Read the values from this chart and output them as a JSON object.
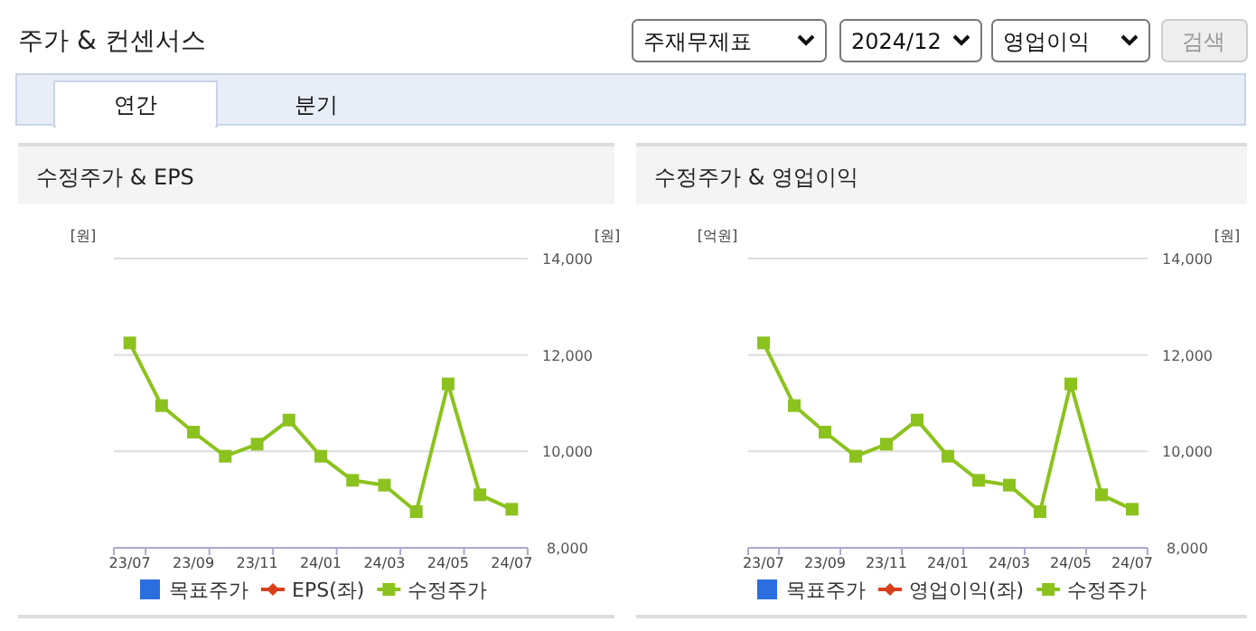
{
  "chart_data": [
    {
      "type": "other",
      "title": "주가 & 컨센서스",
      "annotations": [
        "주재무제표",
        "2024/12",
        "영업이익",
        "검색",
        "연간",
        "분기"
      ]
    },
    {
      "type": "line",
      "title": "수정주가 & EPS",
      "ylabel": "[원]",
      "y2label": "[원]",
      "categories": [
        "23/07",
        null,
        "23/09",
        null,
        "23/11",
        null,
        "24/01",
        null,
        "24/03",
        null,
        "24/05",
        null,
        "24/07"
      ],
      "y2lim": [
        8000,
        14000
      ],
      "y2ticks": [
        {
          "value": 8000,
          "label": "8,000"
        },
        {
          "value": 10000,
          "label": "10,000"
        },
        {
          "value": 12000,
          "label": "12,000"
        },
        {
          "value": 14000,
          "label": "14,000"
        }
      ],
      "grid": "y",
      "legend": "bottom",
      "series": [
        {
          "name": "목표주가",
          "color": "#2a6ee0",
          "marker": "square",
          "values": [
            null,
            null,
            null,
            null,
            null,
            null,
            null,
            null,
            null,
            null,
            null,
            null,
            null
          ]
        },
        {
          "name": "EPS(좌)",
          "color": "#d8401c",
          "marker": "diamond",
          "values": [
            null,
            null,
            null,
            null,
            null,
            null,
            null,
            null,
            null,
            null,
            null,
            null,
            null
          ]
        },
        {
          "name": "수정주가",
          "color": "#8cc21e",
          "marker": "square",
          "axis": "y2",
          "values": [
            12250,
            10950,
            10400,
            9900,
            10150,
            10650,
            9900,
            9400,
            9300,
            8750,
            11400,
            9100,
            8800
          ]
        }
      ]
    },
    {
      "type": "line",
      "title": "수정주가 & 영업이익",
      "ylabel": "[억원]",
      "y2label": "[원]",
      "categories": [
        "23/07",
        null,
        "23/09",
        null,
        "23/11",
        null,
        "24/01",
        null,
        "24/03",
        null,
        "24/05",
        null,
        "24/07"
      ],
      "y2lim": [
        8000,
        14000
      ],
      "y2ticks": [
        {
          "value": 8000,
          "label": "8,000"
        },
        {
          "value": 10000,
          "label": "10,000"
        },
        {
          "value": 12000,
          "label": "12,000"
        },
        {
          "value": 14000,
          "label": "14,000"
        }
      ],
      "grid": "y",
      "legend": "bottom",
      "series": [
        {
          "name": "목표주가",
          "color": "#2a6ee0",
          "marker": "square",
          "values": [
            null,
            null,
            null,
            null,
            null,
            null,
            null,
            null,
            null,
            null,
            null,
            null,
            null
          ]
        },
        {
          "name": "영업이익(좌)",
          "color": "#d8401c",
          "marker": "diamond",
          "values": [
            null,
            null,
            null,
            null,
            null,
            null,
            null,
            null,
            null,
            null,
            null,
            null,
            null
          ]
        },
        {
          "name": "수정주가",
          "color": "#8cc21e",
          "marker": "square",
          "axis": "y2",
          "values": [
            12250,
            10950,
            10400,
            9900,
            10150,
            10650,
            9900,
            9400,
            9300,
            8750,
            11400,
            9100,
            8800
          ]
        }
      ]
    }
  ]
}
